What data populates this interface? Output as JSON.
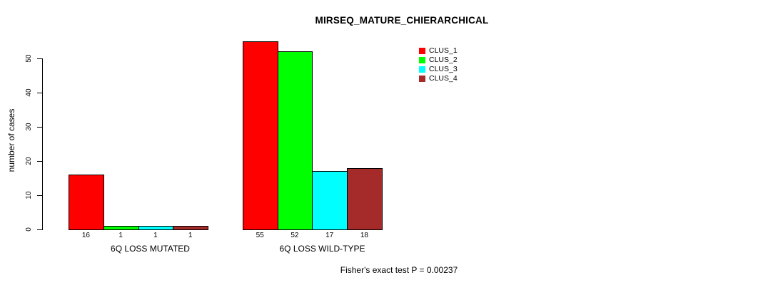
{
  "chart_data": {
    "type": "bar",
    "title": "MIRSEQ_MATURE_CHIERARCHICAL",
    "ylabel": "number of cases",
    "xlabel": "",
    "categories": [
      "6Q LOSS MUTATED",
      "6Q LOSS WILD-TYPE"
    ],
    "series": [
      {
        "name": "CLUS_1",
        "color": "#ff0000",
        "values": [
          16,
          55
        ]
      },
      {
        "name": "CLUS_2",
        "color": "#00ff00",
        "values": [
          1,
          52
        ]
      },
      {
        "name": "CLUS_3",
        "color": "#00ffff",
        "values": [
          1,
          17
        ]
      },
      {
        "name": "CLUS_4",
        "color": "#a52a2a",
        "values": [
          1,
          18
        ]
      }
    ],
    "yticks": [
      0,
      10,
      20,
      30,
      40,
      50
    ],
    "ylim": [
      0,
      55
    ],
    "grid": false,
    "bar_value_labels_shown": true,
    "legend_position": "top-right",
    "legend_entries": [
      "CLUS_1",
      "CLUS_2",
      "CLUS_3",
      "CLUS_4"
    ],
    "annotation": "Fisher's exact test P = 0.00237"
  }
}
